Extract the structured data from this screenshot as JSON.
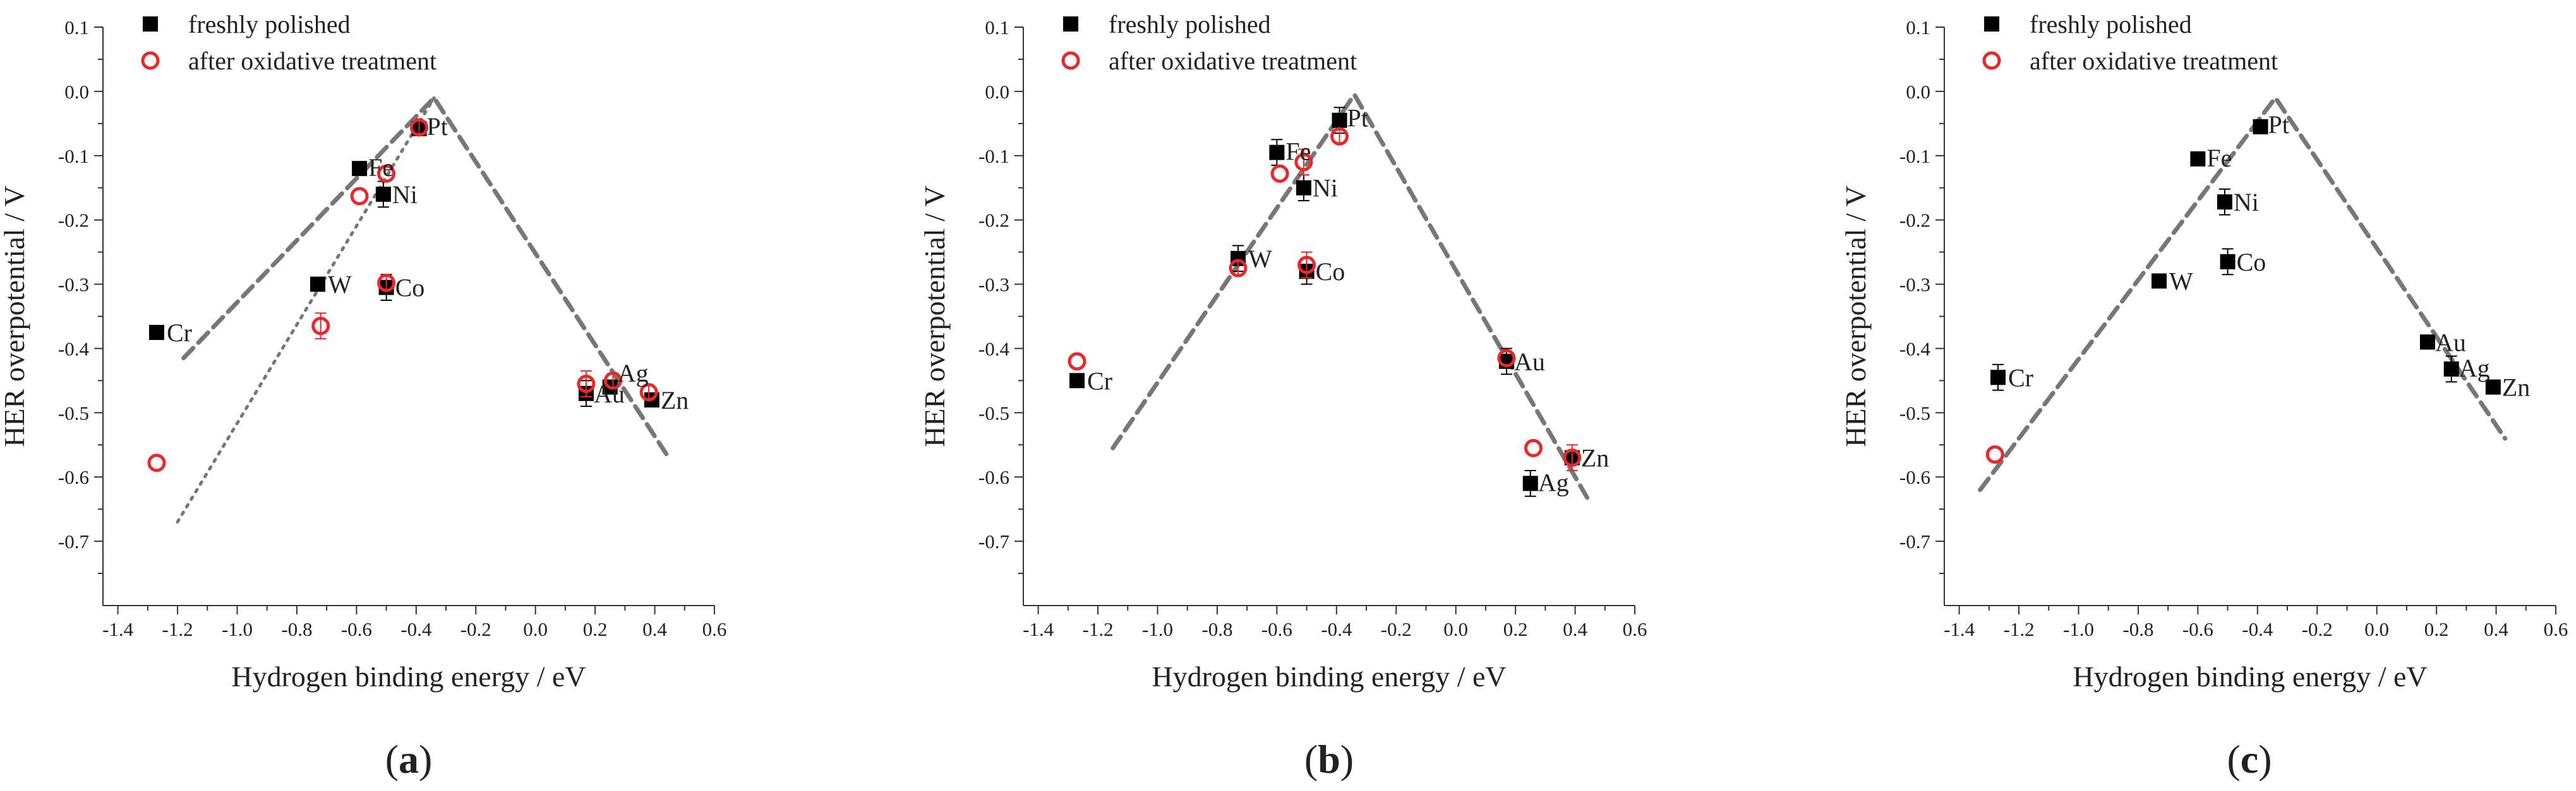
{
  "chart_data": [
    {
      "panel": "a",
      "type": "scatter",
      "panel_label_open": "(",
      "panel_label": "a",
      "panel_label_close": ")",
      "xlabel": "Hydrogen binding energy / eV",
      "ylabel": "HER overpotential / V",
      "xlim": [
        -1.45,
        0.6
      ],
      "ylim": [
        -0.8,
        0.1
      ],
      "xticks": [
        "-1.4",
        "-1.2",
        "-1.0",
        "-0.8",
        "-0.6",
        "-0.4",
        "-0.2",
        "0.0",
        "0.2",
        "0.4",
        "0.6"
      ],
      "yticks": [
        "0.1",
        "0.0",
        "-0.1",
        "-0.2",
        "-0.3",
        "-0.4",
        "-0.5",
        "-0.6",
        "-0.7"
      ],
      "legend": [
        "freshly polished",
        "after oxidative treatment"
      ],
      "series": [
        {
          "name": "freshly polished",
          "marker": "filled-square",
          "color": "#000000",
          "points": [
            {
              "label": "Cr",
              "x": -1.27,
              "y": -0.375,
              "err": 0.0
            },
            {
              "label": "W",
              "x": -0.73,
              "y": -0.3,
              "err": 0.0
            },
            {
              "label": "Fe",
              "x": -0.59,
              "y": -0.12,
              "err": 0.01
            },
            {
              "label": "Ni",
              "x": -0.51,
              "y": -0.16,
              "err": 0.02
            },
            {
              "label": "Co",
              "x": -0.5,
              "y": -0.305,
              "err": 0.02
            },
            {
              "label": "Pt",
              "x": -0.39,
              "y": -0.058,
              "err": 0.0
            },
            {
              "label": "Au",
              "x": 0.17,
              "y": -0.47,
              "err": 0.02
            },
            {
              "label": "Ag",
              "x": 0.25,
              "y": -0.46,
              "err": 0.0
            },
            {
              "label": "Zn",
              "x": 0.39,
              "y": -0.48,
              "err": 0.0
            }
          ]
        },
        {
          "name": "after oxidative treatment",
          "marker": "open-circle",
          "color": "#e8282b",
          "points": [
            {
              "label": "Cr",
              "x": -1.27,
              "y": -0.578,
              "err": 0.0
            },
            {
              "label": "W",
              "x": -0.72,
              "y": -0.365,
              "err": 0.02
            },
            {
              "label": "Fe",
              "x": -0.59,
              "y": -0.163,
              "err": 0.0
            },
            {
              "label": "Ni",
              "x": -0.5,
              "y": -0.128,
              "err": 0.0
            },
            {
              "label": "Co",
              "x": -0.5,
              "y": -0.298,
              "err": 0.01
            },
            {
              "label": "Pt",
              "x": -0.39,
              "y": -0.056,
              "err": 0.01
            },
            {
              "label": "Au",
              "x": 0.17,
              "y": -0.455,
              "err": 0.02
            },
            {
              "label": "Ag",
              "x": 0.26,
              "y": -0.45,
              "err": 0.01
            },
            {
              "label": "Zn",
              "x": 0.38,
              "y": -0.468,
              "err": 0.01
            }
          ]
        }
      ],
      "point_labels": [
        {
          "text": "Cr",
          "x": -1.27,
          "y": -0.375
        },
        {
          "text": "W",
          "x": -0.73,
          "y": -0.3
        },
        {
          "text": "Fe",
          "x": -0.59,
          "y": -0.12
        },
        {
          "text": "Ni",
          "x": -0.51,
          "y": -0.16
        },
        {
          "text": "Co",
          "x": -0.5,
          "y": -0.305
        },
        {
          "text": "Pt",
          "x": -0.39,
          "y": -0.058
        },
        {
          "text": "Au",
          "x": 0.17,
          "y": -0.47
        },
        {
          "text": "Ag",
          "x": 0.25,
          "y": -0.44
        },
        {
          "text": "Zn",
          "x": 0.39,
          "y": -0.48
        }
      ],
      "trend_lines": [
        {
          "style": "dashed",
          "points": [
            [
              -1.18,
              -0.415
            ],
            [
              -0.34,
              -0.01
            ],
            [
              0.44,
              -0.565
            ]
          ]
        },
        {
          "style": "dotted",
          "points": [
            [
              -1.2,
              -0.67
            ],
            [
              -0.34,
              -0.01
            ]
          ]
        }
      ]
    },
    {
      "panel": "b",
      "type": "scatter",
      "panel_label_open": "(",
      "panel_label": "b",
      "panel_label_close": ")",
      "xlabel": "Hydrogen binding energy / eV",
      "ylabel": "HER overpotential / V",
      "xlim": [
        -1.45,
        0.6
      ],
      "ylim": [
        -0.8,
        0.1
      ],
      "xticks": [
        "-1.4",
        "-1.2",
        "-1.0",
        "-0.8",
        "-0.6",
        "-0.4",
        "-0.2",
        "0.0",
        "0.2",
        "0.4",
        "0.6"
      ],
      "yticks": [
        "0.1",
        "0.0",
        "-0.1",
        "-0.2",
        "-0.3",
        "-0.4",
        "-0.5",
        "-0.6",
        "-0.7"
      ],
      "legend": [
        "freshly polished",
        "after oxidative treatment"
      ],
      "series": [
        {
          "name": "freshly polished",
          "marker": "filled-square",
          "color": "#000000",
          "points": [
            {
              "label": "Cr",
              "x": -1.27,
              "y": -0.45,
              "err": 0.0
            },
            {
              "label": "W",
              "x": -0.73,
              "y": -0.26,
              "err": 0.02
            },
            {
              "label": "Fe",
              "x": -0.6,
              "y": -0.095,
              "err": 0.02
            },
            {
              "label": "Ni",
              "x": -0.51,
              "y": -0.15,
              "err": 0.02
            },
            {
              "label": "Co",
              "x": -0.5,
              "y": -0.28,
              "err": 0.02
            },
            {
              "label": "Pt",
              "x": -0.39,
              "y": -0.045,
              "err": 0.02
            },
            {
              "label": "Au",
              "x": 0.17,
              "y": -0.42,
              "err": 0.02
            },
            {
              "label": "Ag",
              "x": 0.25,
              "y": -0.61,
              "err": 0.02
            },
            {
              "label": "Zn",
              "x": 0.39,
              "y": -0.57,
              "err": 0.0
            }
          ]
        },
        {
          "name": "after oxidative treatment",
          "marker": "open-circle",
          "color": "#e8282b",
          "points": [
            {
              "label": "Cr",
              "x": -1.27,
              "y": -0.42,
              "err": 0.0
            },
            {
              "label": "W",
              "x": -0.73,
              "y": -0.275,
              "err": 0.01
            },
            {
              "label": "Fe",
              "x": -0.59,
              "y": -0.128,
              "err": 0.0
            },
            {
              "label": "Ni",
              "x": -0.51,
              "y": -0.11,
              "err": 0.02
            },
            {
              "label": "Co",
              "x": -0.5,
              "y": -0.27,
              "err": 0.02
            },
            {
              "label": "Pt",
              "x": -0.39,
              "y": -0.07,
              "err": 0.01
            },
            {
              "label": "Au",
              "x": 0.17,
              "y": -0.415,
              "err": 0.0
            },
            {
              "label": "Ag",
              "x": 0.26,
              "y": -0.555,
              "err": 0.0
            },
            {
              "label": "Zn",
              "x": 0.39,
              "y": -0.57,
              "err": 0.02
            }
          ]
        }
      ],
      "point_labels": [
        {
          "text": "Cr",
          "x": -1.27,
          "y": -0.45
        },
        {
          "text": "W",
          "x": -0.73,
          "y": -0.26
        },
        {
          "text": "Fe",
          "x": -0.6,
          "y": -0.095
        },
        {
          "text": "Ni",
          "x": -0.51,
          "y": -0.15
        },
        {
          "text": "Co",
          "x": -0.5,
          "y": -0.28
        },
        {
          "text": "Pt",
          "x": -0.39,
          "y": -0.045
        },
        {
          "text": "Au",
          "x": 0.17,
          "y": -0.42
        },
        {
          "text": "Ag",
          "x": 0.25,
          "y": -0.61
        },
        {
          "text": "Zn",
          "x": 0.39,
          "y": -0.57
        }
      ],
      "trend_lines": [
        {
          "style": "dashed",
          "points": [
            [
              -1.15,
              -0.555
            ],
            [
              -0.34,
              -0.005
            ],
            [
              0.45,
              -0.64
            ]
          ]
        }
      ]
    },
    {
      "panel": "c",
      "type": "scatter",
      "panel_label_open": "(",
      "panel_label": "c",
      "panel_label_close": ")",
      "xlabel": "Hydrogen binding energy / eV",
      "ylabel": "HER overpotential / V",
      "xlim": [
        -1.45,
        0.6
      ],
      "ylim": [
        -0.8,
        0.1
      ],
      "xticks": [
        "-1.4",
        "-1.2",
        "-1.0",
        "-0.8",
        "-0.6",
        "-0.4",
        "-0.2",
        "0.0",
        "0.2",
        "0.4",
        "0.6"
      ],
      "yticks": [
        "0.1",
        "0.0",
        "-0.1",
        "-0.2",
        "-0.3",
        "-0.4",
        "-0.5",
        "-0.6",
        "-0.7"
      ],
      "legend": [
        "freshly polished",
        "after oxidative treatment"
      ],
      "series": [
        {
          "name": "freshly polished",
          "marker": "filled-square",
          "color": "#000000",
          "points": [
            {
              "label": "Cr",
              "x": -1.27,
              "y": -0.445,
              "err": 0.02
            },
            {
              "label": "W",
              "x": -0.73,
              "y": -0.295,
              "err": 0.0
            },
            {
              "label": "Fe",
              "x": -0.6,
              "y": -0.105,
              "err": 0.01
            },
            {
              "label": "Ni",
              "x": -0.51,
              "y": -0.172,
              "err": 0.02
            },
            {
              "label": "Co",
              "x": -0.5,
              "y": -0.265,
              "err": 0.02
            },
            {
              "label": "Pt",
              "x": -0.39,
              "y": -0.055,
              "err": 0.01
            },
            {
              "label": "Au",
              "x": 0.17,
              "y": -0.39,
              "err": 0.0
            },
            {
              "label": "Ag",
              "x": 0.25,
              "y": -0.432,
              "err": 0.02
            },
            {
              "label": "Zn",
              "x": 0.39,
              "y": -0.46,
              "err": 0.0
            }
          ]
        },
        {
          "name": "after oxidative treatment",
          "marker": "open-circle",
          "color": "#e8282b",
          "points": [
            {
              "label": "Cr",
              "x": -1.28,
              "y": -0.565,
              "err": 0.0
            }
          ]
        }
      ],
      "point_labels": [
        {
          "text": "Cr",
          "x": -1.27,
          "y": -0.445
        },
        {
          "text": "W",
          "x": -0.73,
          "y": -0.295
        },
        {
          "text": "Fe",
          "x": -0.6,
          "y": -0.105
        },
        {
          "text": "Ni",
          "x": -0.51,
          "y": -0.172
        },
        {
          "text": "Co",
          "x": -0.5,
          "y": -0.265
        },
        {
          "text": "Pt",
          "x": -0.39,
          "y": -0.055
        },
        {
          "text": "Au",
          "x": 0.17,
          "y": -0.39
        },
        {
          "text": "Ag",
          "x": 0.25,
          "y": -0.432
        },
        {
          "text": "Zn",
          "x": 0.39,
          "y": -0.46
        }
      ],
      "trend_lines": [
        {
          "style": "dashed",
          "points": [
            [
              -1.33,
              -0.62
            ],
            [
              -0.34,
              -0.01
            ],
            [
              0.43,
              -0.54
            ]
          ]
        }
      ]
    }
  ]
}
